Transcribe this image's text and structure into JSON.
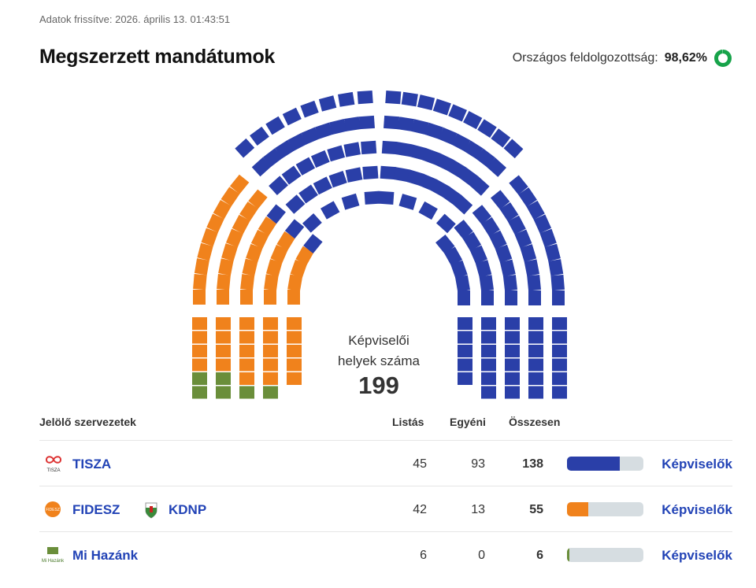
{
  "header": {
    "updated": "Adatok frissítve: 2026. április 13. 01:43:51",
    "title": "Megszerzett mandátumok",
    "progress_label": "Országos feldolgozottság:",
    "progress_value": "98,62%",
    "progress_fraction": 0.9862,
    "progress_color": "#17a34a"
  },
  "chart_data": {
    "type": "parliament",
    "total": 199,
    "center_label_1": "Képviselői",
    "center_label_2": "helyek száma",
    "center_value": "199",
    "series": [
      {
        "name": "TISZA",
        "seats": 138,
        "color": "#2a3fa8"
      },
      {
        "name": "FIDESZ - KDNP",
        "seats": 55,
        "color": "#f0821c"
      },
      {
        "name": "Mi Hazánk",
        "seats": 6,
        "color": "#6a8e3a"
      }
    ]
  },
  "table": {
    "headers": {
      "org": "Jelölő szervezetek",
      "list": "Listás",
      "individual": "Egyéni",
      "total": "Összesen"
    },
    "rows": [
      {
        "party": "TISZA",
        "logo_text": "TISZA",
        "list": "45",
        "individual": "93",
        "total": "138",
        "share": 0.693,
        "color": "#2a3fa8",
        "link": "Képviselők"
      },
      {
        "party": "FIDESZ",
        "party2": "KDNP",
        "logo_text": "FIDESZ",
        "list": "42",
        "individual": "13",
        "total": "55",
        "share": 0.276,
        "color": "#f0821c",
        "link": "Képviselők"
      },
      {
        "party": "Mi Hazánk",
        "logo_text": "Mi Hazánk",
        "list": "6",
        "individual": "0",
        "total": "6",
        "share": 0.03,
        "color": "#6a8e3a",
        "link": "Képviselők"
      }
    ]
  }
}
